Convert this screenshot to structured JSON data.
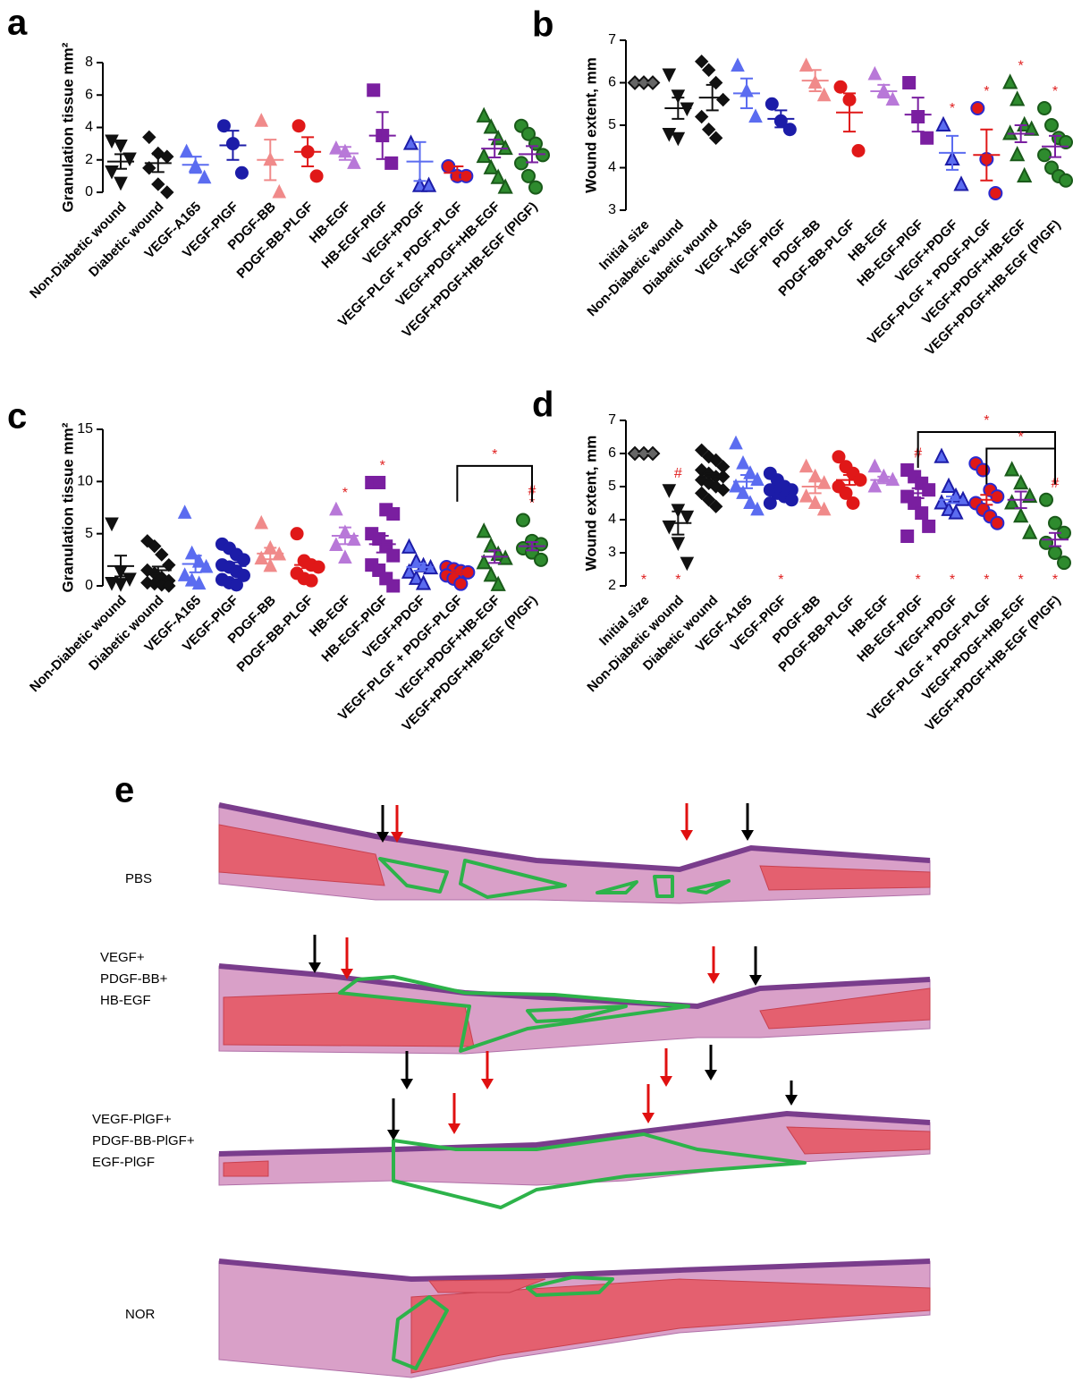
{
  "chart_data": [
    {
      "type": "dot",
      "panel": "a",
      "ylabel": "Granulation tissue mm²",
      "ylim": [
        0,
        8
      ],
      "yticks": [
        0,
        2,
        4,
        6,
        8
      ],
      "groups": [
        {
          "name": "Non-Diabetic wound",
          "marker": "triangle-down",
          "color": "#111111",
          "mean": 1.9,
          "sem": 0.45,
          "points": [
            3.2,
            2.9,
            2.1,
            1.3,
            0.6
          ]
        },
        {
          "name": "Diabetic wound",
          "marker": "diamond",
          "color": "#111111",
          "mean": 1.8,
          "sem": 0.55,
          "points": [
            3.4,
            2.4,
            2.2,
            1.5,
            0.5,
            0.0
          ]
        },
        {
          "name": "VEGF-A165",
          "marker": "triangle-up",
          "color": "#5b6cf0",
          "mean": 1.7,
          "sem": 0.5,
          "points": [
            2.5,
            1.6,
            0.9
          ]
        },
        {
          "name": "VEGF-PlGF",
          "marker": "circle",
          "color": "#1c1ca8",
          "mean": 2.9,
          "sem": 0.9,
          "points": [
            4.1,
            3.0,
            1.2
          ]
        },
        {
          "name": "PDGF-BB",
          "marker": "triangle-up",
          "color": "#f08a8a",
          "mean": 2.0,
          "sem": 1.25,
          "points": [
            4.4,
            2.0,
            0.0
          ]
        },
        {
          "name": "PDGF-BB-PLGF",
          "marker": "circle",
          "color": "#e01818",
          "mean": 2.5,
          "sem": 0.9,
          "points": [
            4.1,
            2.5,
            1.0
          ]
        },
        {
          "name": "HB-EGF",
          "marker": "triangle-up",
          "color": "#b878d8",
          "mean": 2.4,
          "sem": 0.4,
          "points": [
            2.7,
            2.5,
            1.8
          ]
        },
        {
          "name": "HB-EGF-PlGF",
          "marker": "square",
          "color": "#7a1fa0",
          "mean": 3.5,
          "sem": 1.45,
          "points": [
            6.3,
            3.5,
            1.8
          ]
        },
        {
          "name": "VEGF+PDGF",
          "marker": "triangle-up",
          "color": "#5b6cf0",
          "edge": "#1c1ca8",
          "mean": 1.9,
          "sem": 1.2,
          "points": [
            3.0,
            0.4,
            0.4
          ]
        },
        {
          "name": "VEGF-PLGF + PDGF-PLGF",
          "marker": "circle",
          "color": "#e01818",
          "edge": "#2a2ad0",
          "mean": 1.2,
          "sem": 0.4,
          "points": [
            1.6,
            1.0,
            1.0
          ]
        },
        {
          "name": "VEGF+PDGF+HB-EGF",
          "marker": "triangle-up",
          "color": "#2e8b2e",
          "edge": "#1a5a1a",
          "line_color": "#7a1fa0",
          "mean": 2.7,
          "sem": 0.55,
          "points": [
            4.7,
            4.0,
            3.3,
            2.7,
            2.2,
            1.5,
            0.9,
            0.3
          ]
        },
        {
          "name": "VEGF+PDGF+HB-EGF (PlGF)",
          "marker": "circle",
          "color": "#2e8b2e",
          "edge": "#1a5a1a",
          "line_color": "#7a1fa0",
          "mean": 2.35,
          "sem": 0.5,
          "points": [
            4.1,
            3.6,
            3.0,
            2.3,
            1.8,
            1.0,
            0.3
          ]
        }
      ]
    },
    {
      "type": "dot",
      "panel": "b",
      "ylabel": "Wound extent, mm",
      "ylim": [
        3,
        7
      ],
      "yticks": [
        3,
        4,
        5,
        6,
        7
      ],
      "groups": [
        {
          "name": "Initial size",
          "marker": "diamond",
          "color": "#666666",
          "edge": "#111111",
          "mean": 6,
          "sem": 0,
          "points": [
            6,
            6,
            6
          ]
        },
        {
          "name": "Non-Diabetic wound",
          "marker": "triangle-down",
          "color": "#111111",
          "mean": 5.4,
          "sem": 0.25,
          "points": [
            6.2,
            5.7,
            5.4,
            4.8,
            4.7
          ]
        },
        {
          "name": "Diabetic wound",
          "marker": "diamond",
          "color": "#111111",
          "mean": 5.65,
          "sem": 0.3,
          "points": [
            6.5,
            6.3,
            6.0,
            5.6,
            5.2,
            4.9,
            4.7
          ]
        },
        {
          "name": "VEGF-A165",
          "marker": "triangle-up",
          "color": "#5b6cf0",
          "mean": 5.75,
          "sem": 0.35,
          "points": [
            6.4,
            5.8,
            5.2
          ]
        },
        {
          "name": "VEGF-PlGF",
          "marker": "circle",
          "color": "#1c1ca8",
          "mean": 5.15,
          "sem": 0.2,
          "points": [
            5.5,
            5.1,
            4.9
          ]
        },
        {
          "name": "PDGF-BB",
          "marker": "triangle-up",
          "color": "#f08a8a",
          "mean": 6.05,
          "sem": 0.25,
          "points": [
            6.4,
            6.0,
            5.7
          ]
        },
        {
          "name": "PDGF-BB-PLGF",
          "marker": "circle",
          "color": "#e01818",
          "mean": 5.3,
          "sem": 0.45,
          "points": [
            5.9,
            5.6,
            4.4
          ]
        },
        {
          "name": "HB-EGF",
          "marker": "triangle-up",
          "color": "#b878d8",
          "mean": 5.8,
          "sem": 0.15,
          "points": [
            6.2,
            5.8,
            5.6
          ]
        },
        {
          "name": "HB-EGF-PlGF",
          "marker": "square",
          "color": "#7a1fa0",
          "mean": 5.25,
          "sem": 0.4,
          "points": [
            6.0,
            5.2,
            4.7
          ]
        },
        {
          "name": "VEGF+PDGF",
          "marker": "triangle-up",
          "color": "#5b6cf0",
          "edge": "#1c1ca8",
          "mean": 4.35,
          "sem": 0.4,
          "points": [
            5.0,
            4.2,
            3.6
          ],
          "above": [
            "*"
          ]
        },
        {
          "name": "VEGF-PLGF + PDGF-PLGF",
          "marker": "circle",
          "color": "#e01818",
          "edge": "#2a2ad0",
          "mean": 4.3,
          "sem": 0.6,
          "points": [
            5.4,
            4.2,
            3.4
          ],
          "above": [
            "*"
          ]
        },
        {
          "name": "VEGF+PDGF+HB-EGF",
          "marker": "triangle-up",
          "color": "#2e8b2e",
          "edge": "#1a5a1a",
          "line_color": "#7a1fa0",
          "mean": 4.8,
          "sem": 0.2,
          "points": [
            6.0,
            5.6,
            5.0,
            4.9,
            4.8,
            4.3,
            3.8
          ],
          "above": [
            "*"
          ]
        },
        {
          "name": "VEGF+PDGF+HB-EGF (PlGF)",
          "marker": "circle",
          "color": "#2e8b2e",
          "edge": "#1a5a1a",
          "line_color": "#7a1fa0",
          "mean": 4.5,
          "sem": 0.25,
          "points": [
            5.4,
            5.0,
            4.7,
            4.6,
            4.3,
            4.0,
            3.8,
            3.7
          ],
          "above": [
            "*"
          ]
        }
      ]
    },
    {
      "type": "dot",
      "panel": "c",
      "ylabel": "Granulation tissue mm²",
      "ylim": [
        0,
        15
      ],
      "yticks": [
        0,
        5,
        10,
        15
      ],
      "groups": [
        {
          "name": "Non-Diabetic wound",
          "marker": "triangle-down",
          "color": "#111111",
          "mean": 1.9,
          "sem": 1.0,
          "points": [
            6.0,
            1.4,
            0.7,
            0.3,
            0.2
          ]
        },
        {
          "name": "Diabetic wound",
          "marker": "diamond",
          "color": "#111111",
          "mean": 1.5,
          "sem": 0.35,
          "points": [
            4.3,
            3.8,
            3.0,
            2.0,
            1.5,
            1.2,
            0.8,
            0.5,
            0.3,
            0.2,
            0.1,
            0.0
          ]
        },
        {
          "name": "VEGF-A165",
          "marker": "triangle-up",
          "color": "#5b6cf0",
          "mean": 2.1,
          "sem": 0.8,
          "points": [
            7.0,
            3.1,
            2.3,
            1.8,
            1.0,
            0.5,
            0.2
          ]
        },
        {
          "name": "VEGF-PlGF",
          "marker": "circle",
          "color": "#1c1ca8",
          "mean": 1.9,
          "sem": 0.35,
          "points": [
            4.0,
            3.6,
            3.0,
            2.5,
            2.0,
            1.8,
            1.4,
            1.0,
            0.6,
            0.3,
            0.1
          ]
        },
        {
          "name": "PDGF-BB",
          "marker": "triangle-up",
          "color": "#f08a8a",
          "mean": 3.1,
          "sem": 0.55,
          "points": [
            6.0,
            3.6,
            3.0,
            2.6,
            1.9
          ]
        },
        {
          "name": "PDGF-BB-PLGF",
          "marker": "circle",
          "color": "#e01818",
          "mean": 2.0,
          "sem": 0.3,
          "points": [
            5.0,
            2.4,
            2.0,
            1.8,
            1.2,
            0.7,
            0.5
          ]
        },
        {
          "name": "HB-EGF",
          "marker": "triangle-up",
          "color": "#b878d8",
          "mean": 4.8,
          "sem": 0.8,
          "points": [
            7.3,
            5.1,
            4.4,
            3.9,
            2.7
          ],
          "above": [
            "*"
          ]
        },
        {
          "name": "HB-EGF-PlGF",
          "marker": "square",
          "color": "#7a1fa0",
          "mean": 4.0,
          "sem": 0.8,
          "points": [
            9.9,
            9.9,
            7.3,
            6.9,
            5.0,
            4.5,
            3.8,
            2.9,
            2.0,
            1.5,
            0.7,
            0.0
          ],
          "above": [
            "*"
          ]
        },
        {
          "name": "VEGF+PDGF",
          "marker": "triangle-up",
          "color": "#5b6cf0",
          "edge": "#1c1ca8",
          "mean": 1.8,
          "sem": 0.35,
          "points": [
            3.7,
            2.3,
            1.9,
            1.7,
            1.3,
            0.7,
            0.2
          ]
        },
        {
          "name": "VEGF-PLGF + PDGF-PLGF",
          "marker": "circle",
          "color": "#e01818",
          "edge": "#2a2ad0",
          "mean": 1.3,
          "sem": 0.2,
          "points": [
            1.8,
            1.6,
            1.4,
            1.3,
            1.0,
            0.7,
            0.2
          ]
        },
        {
          "name": "VEGF+PDGF+HB-EGF",
          "marker": "triangle-up",
          "color": "#2e8b2e",
          "edge": "#1a5a1a",
          "line_color": "#7a1fa0",
          "mean": 2.8,
          "sem": 0.6,
          "points": [
            5.2,
            3.8,
            3.0,
            2.6,
            2.2,
            1.0,
            0.1
          ]
        },
        {
          "name": "VEGF+PDGF+HB-EGF (PlGF)",
          "marker": "circle",
          "color": "#2e8b2e",
          "edge": "#1a5a1a",
          "line_color": "#7a1fa0",
          "mean": 3.8,
          "sem": 0.4,
          "points": [
            6.3,
            4.3,
            4.0,
            3.6,
            3.2,
            2.5
          ],
          "above": [
            "*",
            "#"
          ]
        }
      ],
      "brackets": [
        {
          "from": 9,
          "to": 11,
          "level": 11.5,
          "label": "*"
        }
      ]
    },
    {
      "type": "dot",
      "panel": "d",
      "ylabel": "Wound extent, mm",
      "ylim": [
        2,
        7
      ],
      "yticks": [
        2,
        3,
        4,
        5,
        6,
        7
      ],
      "groups": [
        {
          "name": "Initial size",
          "marker": "diamond",
          "color": "#666666",
          "edge": "#111111",
          "mean": 6,
          "sem": 0,
          "points": [
            6,
            6,
            6
          ],
          "below": "*"
        },
        {
          "name": "Non-Diabetic wound",
          "marker": "triangle-down",
          "color": "#111111",
          "mean": 3.9,
          "sem": 0.35,
          "points": [
            4.9,
            4.3,
            4.1,
            3.8,
            3.3,
            2.7
          ],
          "above": [
            "#"
          ],
          "below": "*"
        },
        {
          "name": "Diabetic wound",
          "marker": "diamond",
          "color": "#111111",
          "mean": 5.3,
          "sem": 0.1,
          "points": [
            6.1,
            5.9,
            5.8,
            5.6,
            5.5,
            5.4,
            5.3,
            5.3,
            5.2,
            5.1,
            5.0,
            4.9,
            4.8,
            4.6,
            4.4
          ]
        },
        {
          "name": "VEGF-A165",
          "marker": "triangle-up",
          "color": "#5b6cf0",
          "mean": 5.15,
          "sem": 0.2,
          "points": [
            6.3,
            5.7,
            5.4,
            5.2,
            5.0,
            4.8,
            4.5,
            4.3
          ]
        },
        {
          "name": "VEGF-PlGF",
          "marker": "circle",
          "color": "#1c1ca8",
          "mean": 4.9,
          "sem": 0.1,
          "points": [
            5.4,
            5.2,
            5.0,
            4.9,
            4.9,
            4.8,
            4.7,
            4.6,
            4.5
          ],
          "below": "*"
        },
        {
          "name": "PDGF-BB",
          "marker": "triangle-up",
          "color": "#f08a8a",
          "mean": 5.0,
          "sem": 0.2,
          "points": [
            5.6,
            5.3,
            5.1,
            4.7,
            4.5,
            4.3
          ]
        },
        {
          "name": "PDGF-BB-PLGF",
          "marker": "circle",
          "color": "#e01818",
          "mean": 5.2,
          "sem": 0.15,
          "points": [
            5.9,
            5.6,
            5.4,
            5.2,
            5.0,
            4.8,
            4.5
          ]
        },
        {
          "name": "HB-EGF",
          "marker": "triangle-up",
          "color": "#b878d8",
          "mean": 5.2,
          "sem": 0.1,
          "points": [
            5.6,
            5.3,
            5.2,
            5.0
          ]
        },
        {
          "name": "HB-EGF-PlGF",
          "marker": "square",
          "color": "#7a1fa0",
          "mean": 4.8,
          "sem": 0.15,
          "points": [
            5.5,
            5.3,
            5.1,
            4.9,
            4.7,
            4.5,
            4.2,
            3.8,
            3.5
          ],
          "above": [
            "#"
          ],
          "below": "*"
        },
        {
          "name": "VEGF+PDGF",
          "marker": "triangle-up",
          "color": "#5b6cf0",
          "edge": "#1c1ca8",
          "mean": 4.6,
          "sem": 0.1,
          "points": [
            5.9,
            5.0,
            4.7,
            4.6,
            4.5,
            4.3,
            4.2
          ],
          "below": "*"
        },
        {
          "name": "VEGF-PLGF + PDGF-PLGF",
          "marker": "circle",
          "color": "#e01818",
          "edge": "#2a2ad0",
          "mean": 4.6,
          "sem": 0.15,
          "points": [
            5.7,
            5.5,
            4.9,
            4.7,
            4.5,
            4.3,
            4.1,
            3.9
          ],
          "below": "*"
        },
        {
          "name": "VEGF+PDGF+HB-EGF",
          "marker": "triangle-up",
          "color": "#2e8b2e",
          "edge": "#1a5a1a",
          "line_color": "#7a1fa0",
          "mean": 4.6,
          "sem": 0.25,
          "points": [
            5.5,
            5.1,
            4.7,
            4.5,
            4.1,
            3.6
          ],
          "below": "*"
        },
        {
          "name": "VEGF+PDGF+HB-EGF (PlGF)",
          "marker": "circle",
          "color": "#2e8b2e",
          "edge": "#1a5a1a",
          "line_color": "#7a1fa0",
          "mean": 3.4,
          "sem": 0.2,
          "points": [
            4.6,
            3.9,
            3.6,
            3.3,
            3.0,
            2.7
          ],
          "above": [
            "#"
          ],
          "below": "*"
        }
      ],
      "brackets": [
        {
          "from": 8,
          "to": 12,
          "level": 6.65,
          "label": "*"
        },
        {
          "from": 10,
          "to": 12,
          "level": 6.15,
          "label": "*"
        }
      ]
    }
  ],
  "panel_e": {
    "label": "e",
    "rows": [
      {
        "label": [
          "PBS"
        ]
      },
      {
        "label": [
          "VEGF+",
          "PDGF-BB+",
          "HB-EGF"
        ]
      },
      {
        "label": [
          "VEGF-PlGF+",
          "PDGF-BB-PlGF+",
          "EGF-PlGF"
        ]
      },
      {
        "label": [
          "NOR"
        ]
      }
    ]
  }
}
